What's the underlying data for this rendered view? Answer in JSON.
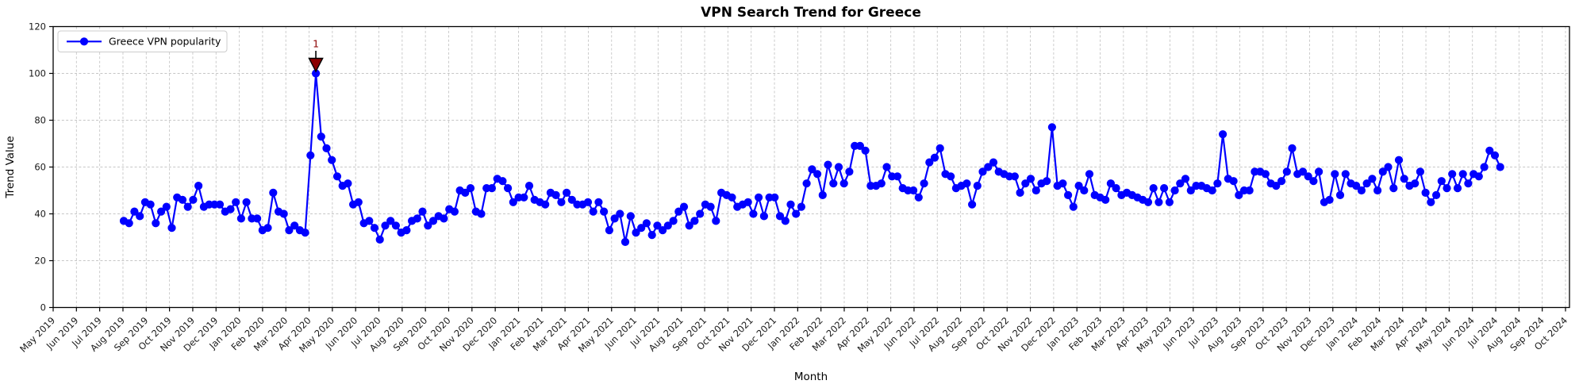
{
  "chart_data": {
    "type": "line",
    "title": "VPN Search Trend for Greece",
    "xlabel": "Month",
    "ylabel": "Trend Value",
    "ylim": [
      0,
      120
    ],
    "yticks": [
      0,
      20,
      40,
      60,
      80,
      100,
      120
    ],
    "grid": "dashed, both axes",
    "legend_position": "upper left",
    "x_tick_labels": [
      "May 2019",
      "Jun 2019",
      "Jul 2019",
      "Aug 2019",
      "Sep 2019",
      "Oct 2019",
      "Nov 2019",
      "Dec 2019",
      "Jan 2020",
      "Feb 2020",
      "Mar 2020",
      "Apr 2020",
      "May 2020",
      "Jun 2020",
      "Jul 2020",
      "Aug 2020",
      "Sep 2020",
      "Oct 2020",
      "Nov 2020",
      "Dec 2020",
      "Jan 2021",
      "Feb 2021",
      "Mar 2021",
      "Apr 2021",
      "May 2021",
      "Jun 2021",
      "Jul 2021",
      "Aug 2021",
      "Sep 2021",
      "Oct 2021",
      "Nov 2021",
      "Dec 2021",
      "Jan 2022",
      "Feb 2022",
      "Mar 2022",
      "Apr 2022",
      "May 2022",
      "Jun 2022",
      "Jul 2022",
      "Aug 2022",
      "Sep 2022",
      "Oct 2022",
      "Nov 2022",
      "Dec 2022",
      "Jan 2023",
      "Feb 2023",
      "Mar 2023",
      "Apr 2023",
      "May 2023",
      "Jun 2023",
      "Jul 2023",
      "Aug 2023",
      "Sep 2023",
      "Oct 2023",
      "Nov 2023",
      "Dec 2023",
      "Jan 2024",
      "Feb 2024",
      "Mar 2024",
      "Apr 2024",
      "May 2024",
      "Jun 2024",
      "Jul 2024",
      "Aug 2024",
      "Sep 2024",
      "Oct 2024"
    ],
    "series": [
      {
        "name": "Greece VPN popularity",
        "color": "#0000ff",
        "marker": "circle",
        "values": [
          37,
          36,
          41,
          39,
          45,
          44,
          36,
          41,
          43,
          34,
          47,
          46,
          43,
          46,
          52,
          43,
          44,
          44,
          44,
          41,
          42,
          45,
          38,
          45,
          38,
          38,
          33,
          34,
          49,
          41,
          40,
          33,
          35,
          33,
          32,
          65,
          100,
          73,
          68,
          63,
          56,
          52,
          53,
          44,
          45,
          36,
          37,
          34,
          29,
          35,
          37,
          35,
          32,
          33,
          37,
          38,
          41,
          35,
          37,
          39,
          38,
          42,
          41,
          50,
          49,
          51,
          41,
          40,
          51,
          51,
          55,
          54,
          51,
          45,
          47,
          47,
          52,
          46,
          45,
          44,
          49,
          48,
          45,
          49,
          46,
          44,
          44,
          45,
          41,
          45,
          41,
          33,
          38,
          40,
          28,
          39,
          32,
          34,
          36,
          31,
          35,
          33,
          35,
          37,
          41,
          43,
          35,
          37,
          40,
          44,
          43,
          37,
          49,
          48,
          47,
          43,
          44,
          45,
          40,
          47,
          39,
          47,
          47,
          39,
          37,
          44,
          40,
          43,
          53,
          59,
          57,
          48,
          61,
          53,
          60,
          53,
          58,
          69,
          69,
          67,
          52,
          52,
          53,
          60,
          56,
          56,
          51,
          50,
          50,
          47,
          53,
          62,
          64,
          68,
          57,
          56,
          51,
          52,
          53,
          44,
          52,
          58,
          60,
          62,
          58,
          57,
          56,
          56,
          49,
          53,
          55,
          50,
          53,
          54,
          77,
          52,
          53,
          48,
          43,
          52,
          50,
          57,
          48,
          47,
          46,
          53,
          51,
          48,
          49,
          48,
          47,
          46,
          45,
          51,
          45,
          51,
          45,
          50,
          53,
          55,
          50,
          52,
          52,
          51,
          50,
          53,
          74,
          55,
          54,
          48,
          50,
          50,
          58,
          58,
          57,
          53,
          52,
          54,
          58,
          68,
          57,
          58,
          56,
          54,
          58,
          45,
          46,
          57,
          48,
          57,
          53,
          52,
          50,
          53,
          55,
          50,
          58,
          60,
          51,
          63,
          55,
          52,
          53,
          58,
          49,
          45,
          48,
          54,
          51,
          57,
          51,
          57,
          53,
          57,
          56,
          60,
          67,
          65,
          60
        ]
      }
    ],
    "annotation": {
      "label": "1",
      "point_index": 36,
      "value": 100,
      "marker": "down-triangle",
      "color": "#8b0000"
    },
    "legend": {
      "entries": [
        "Greece VPN popularity"
      ]
    },
    "colors": {
      "line": "#0000ff",
      "grid": "#c6c6c6",
      "axis": "#000000",
      "annotation": "#8b0000",
      "legend_border": "#cccccc"
    }
  }
}
